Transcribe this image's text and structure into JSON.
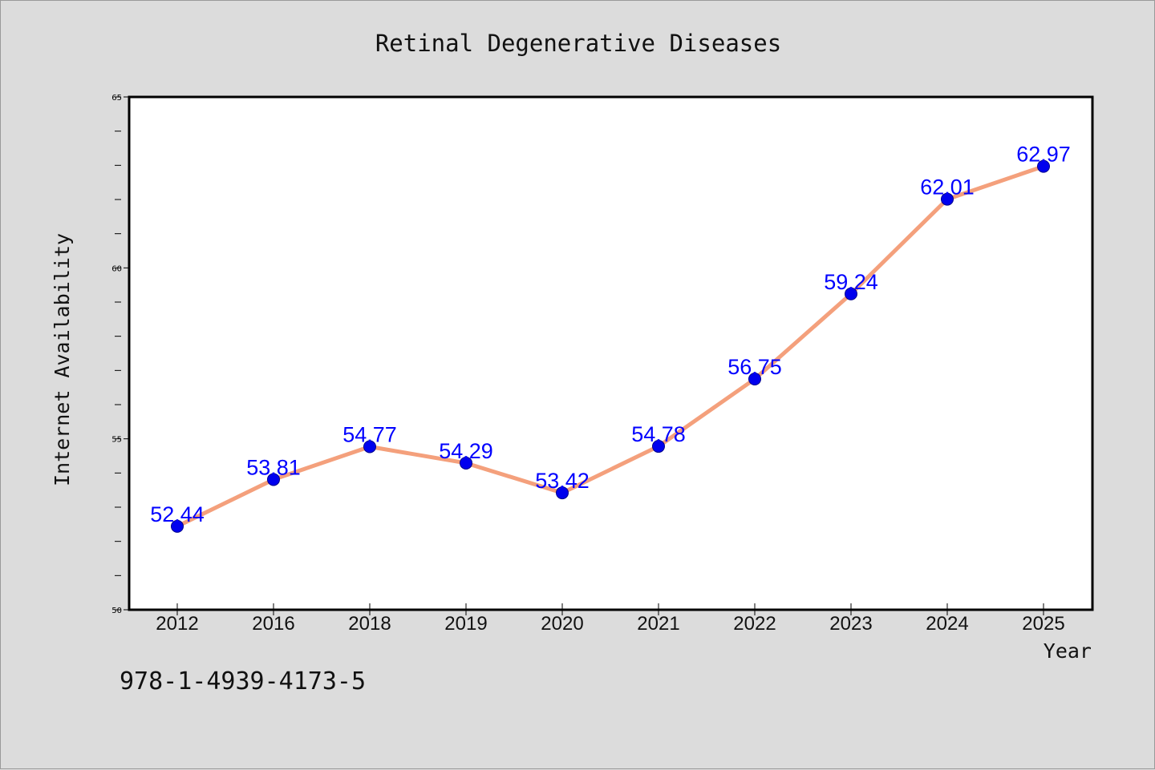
{
  "chart_data": {
    "type": "line",
    "title": "Retinal Degenerative Diseases",
    "xlabel": "Year",
    "ylabel": "Internet Availability",
    "categories": [
      "2012",
      "2016",
      "2018",
      "2019",
      "2020",
      "2021",
      "2022",
      "2023",
      "2024",
      "2025"
    ],
    "values": [
      52.44,
      53.81,
      54.77,
      54.29,
      53.42,
      54.78,
      56.75,
      59.24,
      62.01,
      62.97
    ],
    "data_labels": [
      "52.44",
      "53.81",
      "54.77",
      "54.29",
      "53.42",
      "54.78",
      "56.75",
      "59.24",
      "62.01",
      "62.97"
    ],
    "ylim": [
      50,
      65
    ],
    "yticks": [
      "50",
      "55",
      "60",
      "65"
    ],
    "grid": false,
    "colors": {
      "line": "#f4a07c",
      "marker": "#0000ee",
      "label": "#0000ff",
      "background": "#dcdcdc",
      "plot_background": "#ffffff"
    }
  },
  "footer_code": "978-1-4939-4173-5"
}
